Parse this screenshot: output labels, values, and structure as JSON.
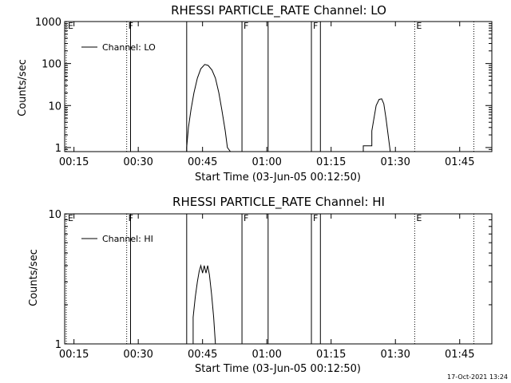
{
  "page": {
    "footer_timestamp": "17-Oct-2021 13:24"
  },
  "chart_data": [
    {
      "type": "line",
      "title": "RHESSI PARTICLE_RATE Channel: LO",
      "xlabel": "Start Time (03-Jun-05 00:12:50)",
      "ylabel": "Counts/sec",
      "yscale": "log",
      "xlim": [
        12.83,
        112.5
      ],
      "ylim": [
        0.8,
        1000
      ],
      "x_tick_values": [
        15,
        30,
        45,
        60,
        75,
        90,
        105
      ],
      "x_tick_labels": [
        "00:15",
        "00:30",
        "00:45",
        "01:00",
        "01:15",
        "01:30",
        "01:45"
      ],
      "y_tick_values": [
        1,
        10,
        100,
        1000
      ],
      "y_tick_labels": [
        "1",
        "10",
        "100",
        "1000"
      ],
      "legend": {
        "entries": [
          "Channel: LO"
        ],
        "position": "top-left"
      },
      "markers": [
        {
          "x": 13.2,
          "label": "E",
          "style": "dotted"
        },
        {
          "x": 27.3,
          "label": "F",
          "style": "dotted"
        },
        {
          "x": 28.2,
          "label": "",
          "style": "solid"
        },
        {
          "x": 41.3,
          "label": "",
          "style": "solid"
        },
        {
          "x": 54.2,
          "label": "F",
          "style": "solid"
        },
        {
          "x": 60.3,
          "label": "",
          "style": "solid"
        },
        {
          "x": 70.4,
          "label": "F",
          "style": "solid"
        },
        {
          "x": 72.5,
          "label": "",
          "style": "solid"
        },
        {
          "x": 94.5,
          "label": "E",
          "style": "dotted"
        },
        {
          "x": 108.3,
          "label": "",
          "style": "dotted"
        }
      ],
      "series": [
        {
          "segments": [
            [
              [
                41.3,
                0.8
              ],
              [
                41.3,
                1
              ],
              [
                41.7,
                3
              ],
              [
                42.3,
                8
              ],
              [
                43,
                20
              ],
              [
                43.8,
                45
              ],
              [
                44.6,
                75
              ],
              [
                45.5,
                95
              ],
              [
                46.3,
                90
              ],
              [
                47.2,
                70
              ],
              [
                48,
                45
              ],
              [
                48.8,
                20
              ],
              [
                49.5,
                8
              ],
              [
                50.3,
                2.5
              ],
              [
                50.8,
                1
              ],
              [
                51.5,
                0.8
              ]
            ],
            [
              [
                82.5,
                0.8
              ],
              [
                82.5,
                1.1
              ],
              [
                84.5,
                1.1
              ],
              [
                84.5,
                2.5
              ],
              [
                85,
                5
              ],
              [
                85.5,
                10
              ],
              [
                86.2,
                14
              ],
              [
                86.8,
                14.5
              ],
              [
                87.3,
                11
              ],
              [
                87.8,
                5
              ],
              [
                88.3,
                2
              ],
              [
                88.8,
                0.8
              ]
            ]
          ]
        }
      ]
    },
    {
      "type": "line",
      "title": "RHESSI PARTICLE_RATE Channel: HI",
      "xlabel": "Start Time (03-Jun-05 00:12:50)",
      "ylabel": "Counts/sec",
      "yscale": "log",
      "xlim": [
        12.83,
        112.5
      ],
      "ylim": [
        1,
        10
      ],
      "x_tick_values": [
        15,
        30,
        45,
        60,
        75,
        90,
        105
      ],
      "x_tick_labels": [
        "00:15",
        "00:30",
        "00:45",
        "01:00",
        "01:15",
        "01:30",
        "01:45"
      ],
      "y_tick_values": [
        1,
        10
      ],
      "y_tick_labels": [
        "1",
        "10"
      ],
      "legend": {
        "entries": [
          "Channel: HI"
        ],
        "position": "top-left"
      },
      "markers": [
        {
          "x": 13.2,
          "label": "E",
          "style": "dotted"
        },
        {
          "x": 27.3,
          "label": "F",
          "style": "dotted"
        },
        {
          "x": 28.2,
          "label": "",
          "style": "solid"
        },
        {
          "x": 41.3,
          "label": "",
          "style": "solid"
        },
        {
          "x": 54.2,
          "label": "F",
          "style": "solid"
        },
        {
          "x": 60.3,
          "label": "",
          "style": "solid"
        },
        {
          "x": 70.4,
          "label": "F",
          "style": "solid"
        },
        {
          "x": 72.5,
          "label": "",
          "style": "solid"
        },
        {
          "x": 94.5,
          "label": "E",
          "style": "dotted"
        },
        {
          "x": 108.3,
          "label": "",
          "style": "dotted"
        }
      ],
      "series": [
        {
          "segments": [
            [
              [
                42.8,
                1
              ],
              [
                42.8,
                1.6
              ],
              [
                43.3,
                2.3
              ],
              [
                43.8,
                3
              ],
              [
                44.2,
                3.6
              ],
              [
                44.6,
                4
              ],
              [
                45,
                3.5
              ],
              [
                45.4,
                4
              ],
              [
                45.8,
                3.5
              ],
              [
                46.2,
                4
              ],
              [
                46.6,
                3.4
              ],
              [
                47.1,
                2.4
              ],
              [
                47.6,
                1.6
              ],
              [
                48,
                1
              ]
            ]
          ]
        }
      ]
    }
  ]
}
